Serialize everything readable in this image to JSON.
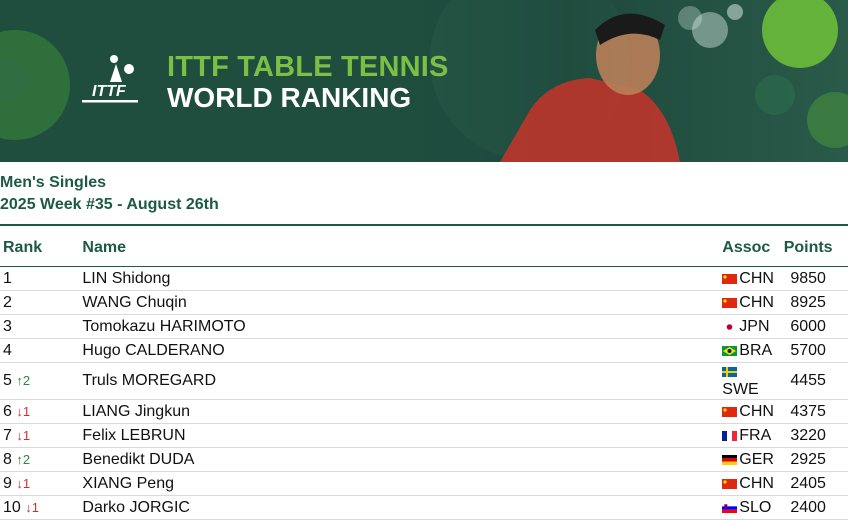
{
  "banner": {
    "title_line1": "ITTF TABLE TENNIS",
    "title_line2": "WORLD RANKING",
    "logo_text": "ITTF"
  },
  "subtitle": {
    "category": "Men's Singles",
    "week": "2025 Week #35 - August 26th"
  },
  "table": {
    "headers": {
      "rank": "Rank",
      "name": "Name",
      "assoc": "Assoc",
      "points": "Points"
    },
    "rows": [
      {
        "rank": "1",
        "change": "",
        "dir": "",
        "name": "LIN Shidong",
        "assoc": "CHN",
        "flag": "chn-flag-icon",
        "points": "9850"
      },
      {
        "rank": "2",
        "change": "",
        "dir": "",
        "name": "WANG Chuqin",
        "assoc": "CHN",
        "flag": "chn-flag-icon",
        "points": "8925"
      },
      {
        "rank": "3",
        "change": "",
        "dir": "",
        "name": "Tomokazu HARIMOTO",
        "assoc": "JPN",
        "flag": "jpn-flag-icon",
        "points": "6000"
      },
      {
        "rank": "4",
        "change": "",
        "dir": "",
        "name": "Hugo CALDERANO",
        "assoc": "BRA",
        "flag": "bra-flag-icon",
        "points": "5700"
      },
      {
        "rank": "5",
        "change": "↑2",
        "dir": "up",
        "name": "Truls MOREGARD",
        "assoc": "SWE",
        "flag": "swe-flag-icon",
        "points": "4455"
      },
      {
        "rank": "6",
        "change": "↓1",
        "dir": "down",
        "name": "LIANG Jingkun",
        "assoc": "CHN",
        "flag": "chn-flag-icon",
        "points": "4375"
      },
      {
        "rank": "7",
        "change": "↓1",
        "dir": "down",
        "name": "Felix LEBRUN",
        "assoc": "FRA",
        "flag": "fra-flag-icon",
        "points": "3220"
      },
      {
        "rank": "8",
        "change": "↑2",
        "dir": "up",
        "name": "Benedikt DUDA",
        "assoc": "GER",
        "flag": "ger-flag-icon",
        "points": "2925"
      },
      {
        "rank": "9",
        "change": "↓1",
        "dir": "down",
        "name": "XIANG Peng",
        "assoc": "CHN",
        "flag": "chn-flag-icon",
        "points": "2405"
      },
      {
        "rank": "10",
        "change": "↓1",
        "dir": "down",
        "name": "Darko JORGIC",
        "assoc": "SLO",
        "flag": "slo-flag-icon",
        "points": "2400"
      }
    ]
  },
  "colors": {
    "banner_bg": "#1f4e3f",
    "accent_green": "#7bbf44",
    "heading_green": "#1d5a46",
    "up": "#2a8a3a",
    "down": "#d32f2f"
  }
}
